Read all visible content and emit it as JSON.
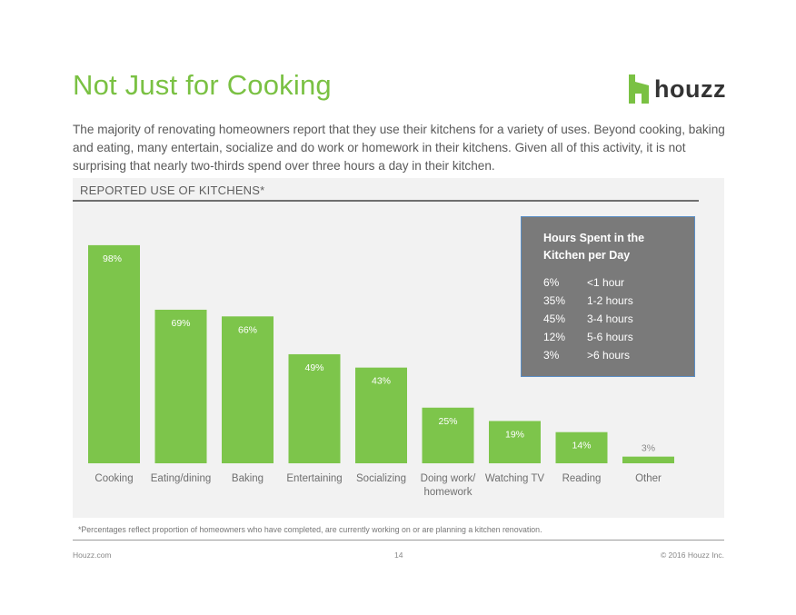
{
  "header": {
    "title": "Not Just for Cooking",
    "logo_text": "houzz"
  },
  "intro": "The majority of renovating homeowners report that they use their kitchens for a variety of uses. Beyond cooking, baking and eating, many entertain, socialize and do work or homework in their kitchens. Given all of this activity, it is not surprising that nearly two-thirds spend over three hours a day in their kitchen.",
  "section_label": "REPORTED USE OF KITCHENS*",
  "chart_data": {
    "type": "bar",
    "categories": [
      "Cooking",
      "Eating/dining",
      "Baking",
      "Entertaining",
      "Socializing",
      "Doing work/ homework",
      "Watching TV",
      "Reading",
      "Other"
    ],
    "values": [
      98,
      69,
      66,
      49,
      43,
      25,
      19,
      14,
      3
    ],
    "value_labels": [
      "98%",
      "69%",
      "66%",
      "49%",
      "43%",
      "25%",
      "19%",
      "14%",
      "3%"
    ],
    "ylim": [
      0,
      100
    ],
    "title": "REPORTED USE OF KITCHENS*",
    "xlabel": "",
    "ylabel": "",
    "grid": false,
    "bar_color": "#7dc54b"
  },
  "hours_box": {
    "title": "Hours Spent in the Kitchen per Day",
    "rows": [
      {
        "pct": "6%",
        "label": "<1 hour"
      },
      {
        "pct": "35%",
        "label": "1-2 hours"
      },
      {
        "pct": "45%",
        "label": "3-4 hours"
      },
      {
        "pct": "12%",
        "label": "5-6 hours"
      },
      {
        "pct": "3%",
        "label": ">6 hours"
      }
    ]
  },
  "footnote": "*Percentages reflect proportion of homeowners who have completed, are currently working on or are planning a kitchen renovation.",
  "footer": {
    "left": "Houzz.com",
    "page": "14",
    "right": "© 2016 Houzz Inc."
  },
  "colors": {
    "accent": "#7ac143",
    "bar": "#7dc54b",
    "box": "#7a7a7a"
  }
}
